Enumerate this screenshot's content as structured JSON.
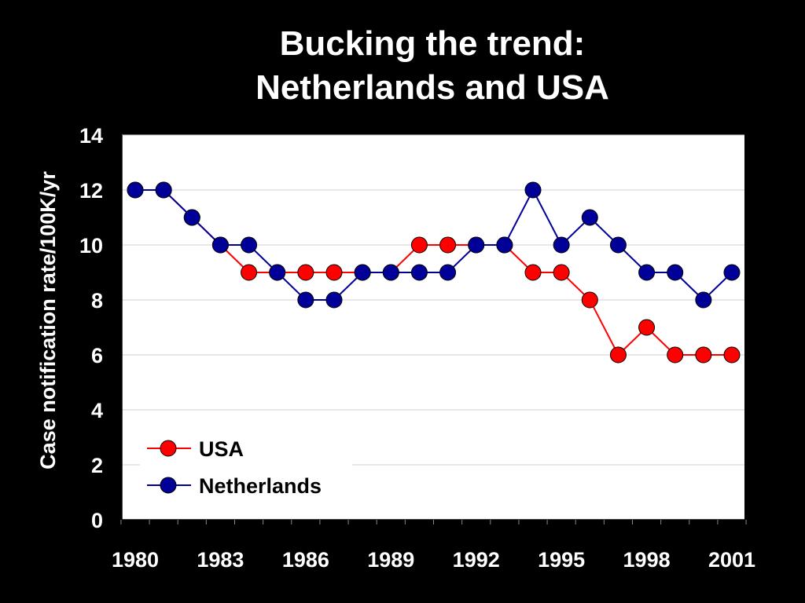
{
  "title_line1": "Bucking the trend:",
  "title_line2": "Netherlands and USA",
  "chart_data": {
    "type": "line",
    "title": "Bucking the trend: Netherlands and USA",
    "xlabel": "",
    "ylabel": "Case notification rate/100K/yr",
    "x": [
      1980,
      1981,
      1982,
      1983,
      1984,
      1985,
      1986,
      1987,
      1988,
      1989,
      1990,
      1991,
      1992,
      1993,
      1994,
      1995,
      1996,
      1997,
      1998,
      1999,
      2000,
      2001
    ],
    "x_tick_labels": [
      "1980",
      "1983",
      "1986",
      "1989",
      "1992",
      "1995",
      "1998",
      "2001"
    ],
    "y_tick_labels": [
      "0",
      "2",
      "4",
      "6",
      "8",
      "10",
      "12",
      "14"
    ],
    "ylim": [
      0,
      14
    ],
    "grid": true,
    "legend_position": "bottom-left",
    "series": [
      {
        "name": "USA",
        "color": "#ff0000",
        "values": [
          12,
          12,
          11,
          10,
          9,
          9,
          9,
          9,
          9,
          9,
          10,
          10,
          10,
          10,
          9,
          9,
          8,
          6,
          7,
          6,
          6,
          6
        ]
      },
      {
        "name": "Netherlands",
        "color": "#000099",
        "values": [
          12,
          12,
          11,
          10,
          10,
          9,
          8,
          8,
          9,
          9,
          9,
          9,
          10,
          10,
          12,
          10,
          11,
          10,
          9,
          9,
          8,
          9
        ]
      }
    ]
  }
}
